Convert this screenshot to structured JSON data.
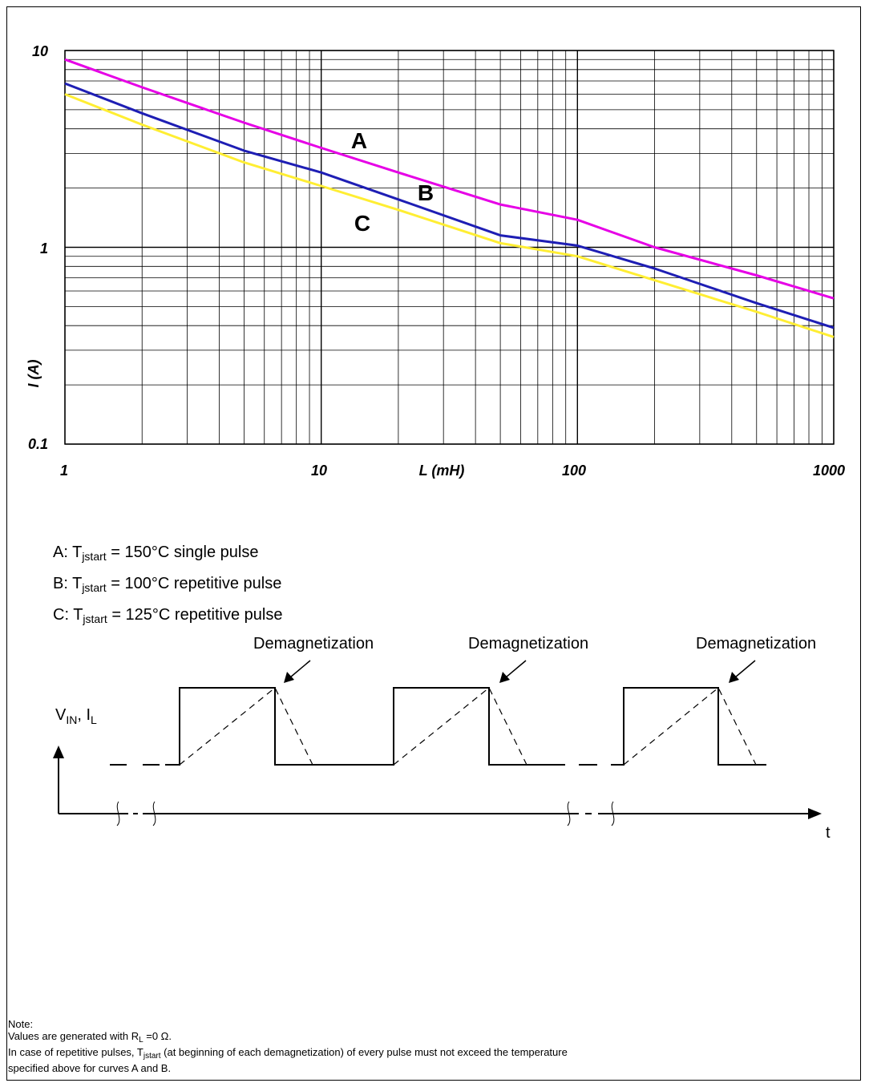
{
  "chart_data": {
    "type": "line",
    "xlabel": "L (mH)",
    "ylabel": "I (A)",
    "xscale": "log",
    "yscale": "log",
    "xlim": [
      1,
      1000
    ],
    "ylim": [
      0.1,
      10
    ],
    "grid": true,
    "x_ticks": [
      "1",
      "10",
      "100",
      "1000"
    ],
    "y_ticks": [
      "0.1",
      "1",
      "10"
    ],
    "series": [
      {
        "name": "A",
        "color": "#e600e6",
        "x": [
          1,
          2,
          5,
          10,
          20,
          50,
          100,
          200,
          500,
          1000
        ],
        "y": [
          9.0,
          6.5,
          4.3,
          3.2,
          2.4,
          1.65,
          1.38,
          1.0,
          0.72,
          0.55
        ]
      },
      {
        "name": "B",
        "color": "#1e1eb4",
        "x": [
          1,
          2,
          5,
          10,
          20,
          50,
          100,
          200,
          500,
          1000
        ],
        "y": [
          6.8,
          4.8,
          3.1,
          2.4,
          1.75,
          1.15,
          1.02,
          0.78,
          0.52,
          0.39
        ]
      },
      {
        "name": "C",
        "color": "#ffee33",
        "x": [
          1,
          2,
          5,
          10,
          20,
          50,
          100,
          200,
          500,
          1000
        ],
        "y": [
          6.0,
          4.2,
          2.7,
          2.05,
          1.55,
          1.05,
          0.9,
          0.68,
          0.47,
          0.35
        ]
      }
    ],
    "curve_labels": [
      "A",
      "B",
      "C"
    ]
  },
  "legend": {
    "a_prefix": "A: T",
    "a_sub": "jstart",
    "a_suffix": " = 150°C single pulse",
    "b_prefix": "B: T",
    "b_sub": "jstart",
    "b_suffix": " = 100°C repetitive pulse",
    "c_prefix": "C: T",
    "c_sub": "jstart",
    "c_suffix": " = 125°C repetitive pulse"
  },
  "diagram": {
    "y_axis_label_v": "V",
    "y_axis_label_v_sub": "IN",
    "y_axis_label_sep": ", I",
    "y_axis_label_i_sub": "L",
    "x_axis_label": "t",
    "annotations": [
      "Demagnetization",
      "Demagnetization",
      "Demagnetization"
    ]
  },
  "note": {
    "title": "Note:",
    "line1_prefix": "Values are generated with R",
    "line1_sub": "L",
    "line1_suffix": " =0 Ω.",
    "line2_prefix": "In case of repetitive pulses, T",
    "line2_sub": "jstart",
    "line2_suffix": " (at beginning of each demagnetization) of every pulse must not exceed the temperature",
    "line3": "specified above for curves A and B."
  }
}
